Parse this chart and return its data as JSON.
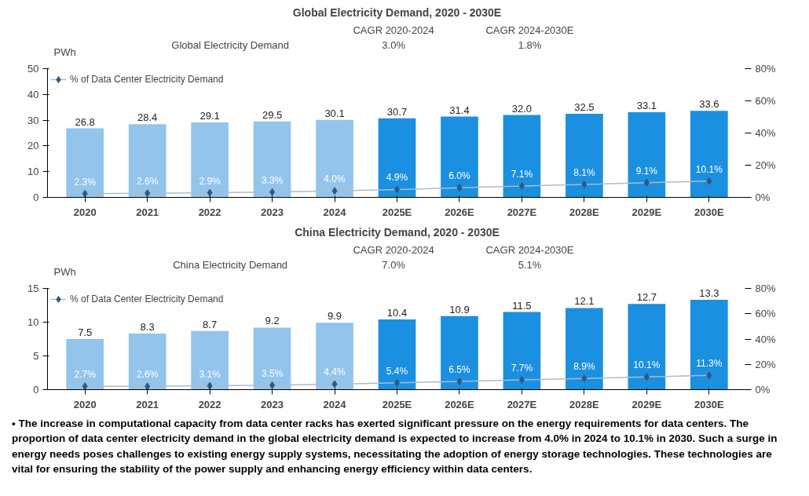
{
  "chart_data": [
    {
      "type": "bar",
      "title": "Global Electricity Demand, 2020 - 2030E",
      "ylabel": "PWh",
      "annotations": [
        "CAGR 2020-2024",
        "CAGR 2024-2030E",
        "Global Electricity Demand",
        "3.0%",
        "1.8%"
      ],
      "categories": [
        "2020",
        "2021",
        "2022",
        "2023",
        "2024",
        "2025E",
        "2026E",
        "2027E",
        "2028E",
        "2029E",
        "2030E"
      ],
      "series": [
        {
          "colors": [
            "#93c4ec",
            "#93c4ec",
            "#93c4ec",
            "#93c4ec",
            "#93c4ec",
            "#1b8fe0",
            "#1b8fe0",
            "#1b8fe0",
            "#1b8fe0",
            "#1b8fe0",
            "#1b8fe0"
          ],
          "values": [
            26.8,
            28.4,
            29.1,
            29.5,
            30.1,
            30.7,
            31.4,
            32.0,
            32.5,
            33.1,
            33.6
          ],
          "value_labels": [
            "26.8",
            "28.4",
            "29.1",
            "29.5",
            "30.1",
            "30.7",
            "31.4",
            "32.0",
            "32.5",
            "33.1",
            "33.6"
          ]
        },
        {
          "type": "line",
          "axis": "y2",
          "name": "% of Data Center Electricity Demand",
          "color": "#2e5a80",
          "values": [
            2.3,
            2.6,
            2.9,
            3.3,
            4.0,
            4.9,
            6.0,
            7.1,
            8.1,
            9.1,
            10.1
          ],
          "value_labels": [
            "2.3%",
            "2.6%",
            "2.9%",
            "3.3%",
            "4.0%",
            "4.9%",
            "6.0%",
            "7.1%",
            "8.1%",
            "9.1%",
            "10.1%"
          ]
        }
      ],
      "marker": "diamond",
      "legend": "top left",
      "ylim": [
        0,
        50
      ],
      "yticks": [
        0,
        10,
        20,
        30,
        40,
        50
      ],
      "y2lim": [
        0,
        80
      ],
      "y2ticks": [
        {
          "value": 0,
          "label": "0%"
        },
        {
          "value": 20,
          "label": "20%"
        },
        {
          "value": 40,
          "label": "40%"
        },
        {
          "value": 60,
          "label": "60%"
        },
        {
          "value": 80,
          "label": "80%"
        }
      ]
    },
    {
      "type": "bar",
      "title": "China Electricity Demand, 2020 - 2030E",
      "ylabel": "PWh",
      "annotations": [
        "CAGR 2020-2024",
        "CAGR 2024-2030E",
        "China Electricity Demand",
        "7.0%",
        "5.1%",
        "• The increase in computational capacity from data center racks has exerted significant pressure on the energy requirements for data centers. The proportion of data center electricity demand in the global electricity demand is expected to increase from 4.0% in 2024 to 10.1% in 2030. Such a surge in energy needs poses challenges to existing energy supply systems, necessitating the adoption of energy storage technologies. These technologies are vital for ensuring the stability of the power supply and enhancing energy efficiency within data centers."
      ],
      "categories": [
        "2020",
        "2021",
        "2022",
        "2023",
        "2024",
        "2025E",
        "2026E",
        "2027E",
        "2028E",
        "2029E",
        "2030E"
      ],
      "series": [
        {
          "colors": [
            "#93c4ec",
            "#93c4ec",
            "#93c4ec",
            "#93c4ec",
            "#93c4ec",
            "#1b8fe0",
            "#1b8fe0",
            "#1b8fe0",
            "#1b8fe0",
            "#1b8fe0",
            "#1b8fe0"
          ],
          "values": [
            7.5,
            8.3,
            8.7,
            9.2,
            9.9,
            10.4,
            10.9,
            11.5,
            12.1,
            12.7,
            13.3
          ],
          "value_labels": [
            "7.5",
            "8.3",
            "8.7",
            "9.2",
            "9.9",
            "10.4",
            "10.9",
            "11.5",
            "12.1",
            "12.7",
            "13.3"
          ]
        },
        {
          "type": "line",
          "axis": "y2",
          "name": "% of Data Center Electricity Demand",
          "color": "#2e5a80",
          "values": [
            2.7,
            2.6,
            3.1,
            3.5,
            4.4,
            5.4,
            6.5,
            7.7,
            8.9,
            10.1,
            11.3
          ],
          "value_labels": [
            "2.7%",
            "2.6%",
            "3.1%",
            "3.5%",
            "4.4%",
            "5.4%",
            "6.5%",
            "7.7%",
            "8.9%",
            "10.1%",
            "11.3%"
          ]
        }
      ],
      "marker": "diamond",
      "legend": "top left",
      "ylim": [
        0,
        15
      ],
      "yticks": [
        0,
        5,
        10,
        15
      ],
      "y2lim": [
        0,
        80
      ],
      "y2ticks": [
        {
          "value": 0,
          "label": "0%"
        },
        {
          "value": 20,
          "label": "20%"
        },
        {
          "value": 40,
          "label": "40%"
        },
        {
          "value": 60,
          "label": "60%"
        },
        {
          "value": 80,
          "label": "80%"
        }
      ]
    }
  ]
}
